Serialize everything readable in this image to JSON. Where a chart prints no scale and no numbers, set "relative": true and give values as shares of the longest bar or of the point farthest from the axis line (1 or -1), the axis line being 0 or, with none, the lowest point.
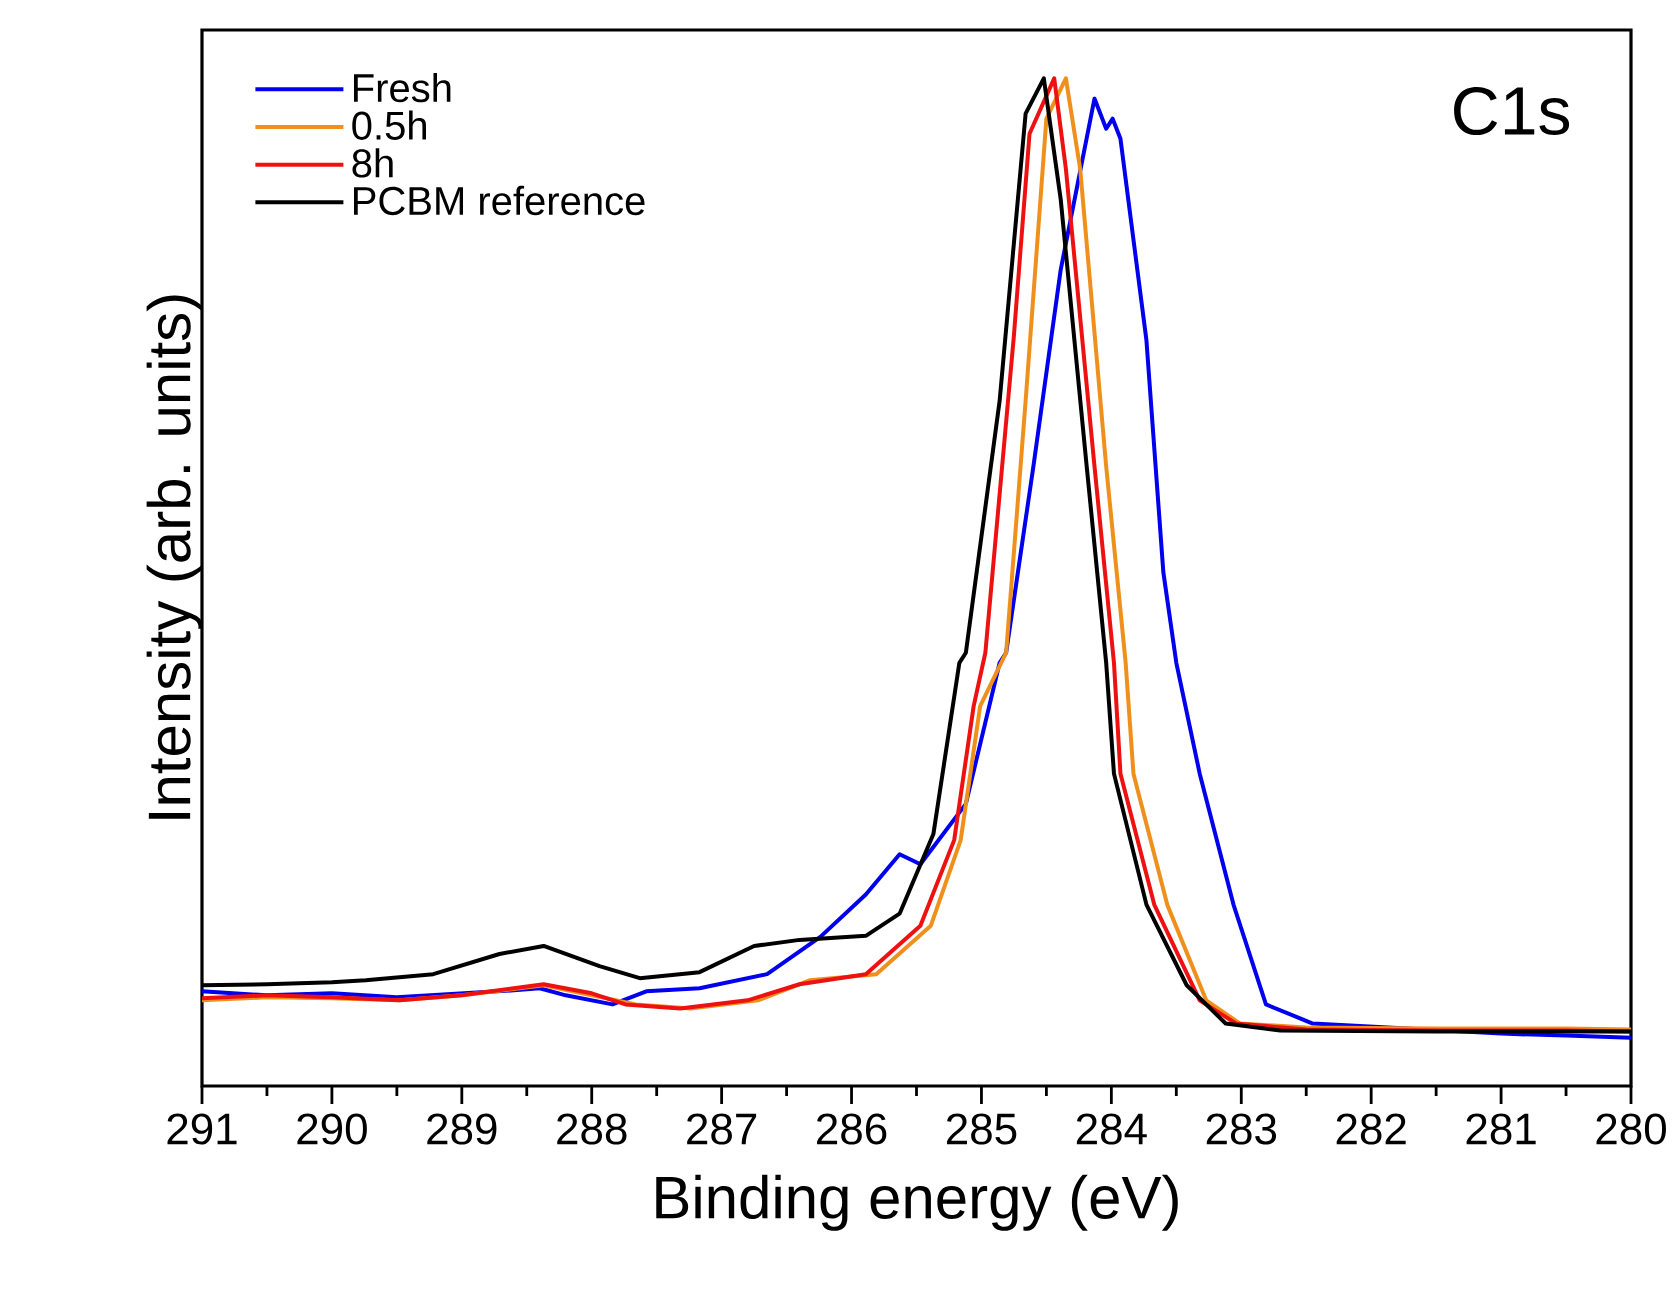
{
  "chart_data": {
    "type": "line",
    "relative": true,
    "xlabel": "Binding energy (eV)",
    "ylabel": "Intensity (arb. units)",
    "xlim": [
      291,
      280
    ],
    "xticks": [
      291,
      290,
      289,
      288,
      287,
      286,
      285,
      284,
      283,
      282,
      281,
      280
    ],
    "legend": "top left",
    "annotations": [
      "C1s"
    ],
    "series": [
      {
        "name": "Fresh",
        "color": "#0000ee",
        "x": [
          291,
          290.5,
          290,
          289.5,
          288.6,
          288.4,
          288.2,
          287.84,
          287.58,
          287.17,
          286.65,
          286.24,
          285.89,
          285.63,
          285.47,
          285.12,
          284.86,
          284.81,
          284.6,
          284.39,
          284.13,
          284.04,
          283.99,
          283.93,
          283.73,
          283.6,
          283.5,
          283.32,
          283.06,
          282.81,
          282.45,
          281,
          280.5,
          280
        ],
        "values": [
          0.094,
          0.09,
          0.092,
          0.088,
          0.095,
          0.097,
          0.09,
          0.081,
          0.094,
          0.097,
          0.111,
          0.148,
          0.19,
          0.23,
          0.22,
          0.28,
          0.42,
          0.43,
          0.615,
          0.81,
          0.98,
          0.95,
          0.96,
          0.94,
          0.74,
          0.51,
          0.42,
          0.31,
          0.18,
          0.081,
          0.062,
          0.052,
          0.05,
          0.048
        ]
      },
      {
        "name": "0.5h",
        "color": "#f0901c",
        "x": [
          291,
          290.5,
          290,
          289.48,
          289,
          288.37,
          288,
          287.66,
          287.24,
          286.72,
          286.32,
          285.81,
          285.39,
          285.16,
          285.01,
          284.81,
          284.66,
          284.5,
          284.35,
          284.24,
          284.04,
          283.89,
          283.83,
          283.57,
          283.27,
          283.01,
          282.5,
          281.5,
          280.5,
          280
        ],
        "values": [
          0.085,
          0.088,
          0.087,
          0.085,
          0.09,
          0.1,
          0.09,
          0.081,
          0.077,
          0.085,
          0.105,
          0.111,
          0.159,
          0.244,
          0.377,
          0.43,
          0.68,
          0.96,
          1.0,
          0.91,
          0.615,
          0.42,
          0.31,
          0.18,
          0.085,
          0.062,
          0.058,
          0.057,
          0.057,
          0.056
        ]
      },
      {
        "name": "8h",
        "color": "#ee1111",
        "x": [
          291,
          290.5,
          290,
          289.48,
          289,
          288.37,
          288,
          287.74,
          287.32,
          286.8,
          286.4,
          285.89,
          285.47,
          285.21,
          285.06,
          284.97,
          284.75,
          284.63,
          284.44,
          284.35,
          284.13,
          283.98,
          283.93,
          283.67,
          283.32,
          283.04,
          282.5,
          281.5,
          280.5,
          280
        ],
        "values": [
          0.087,
          0.09,
          0.088,
          0.085,
          0.09,
          0.101,
          0.092,
          0.081,
          0.077,
          0.085,
          0.101,
          0.111,
          0.159,
          0.244,
          0.377,
          0.43,
          0.745,
          0.945,
          1.0,
          0.91,
          0.615,
          0.42,
          0.31,
          0.18,
          0.085,
          0.062,
          0.056,
          0.055,
          0.055,
          0.054
        ]
      },
      {
        "name": "PCBM reference",
        "color": "#000000",
        "x": [
          291,
          290.5,
          290,
          289.74,
          289.22,
          288.71,
          288.37,
          287.94,
          287.63,
          287.17,
          286.75,
          286.4,
          285.89,
          285.63,
          285.37,
          285.17,
          285.12,
          284.86,
          284.66,
          284.52,
          284.39,
          284.19,
          284.04,
          283.98,
          283.73,
          283.42,
          283.12,
          282.7,
          281.5,
          280.5,
          280
        ],
        "values": [
          0.1,
          0.101,
          0.103,
          0.105,
          0.111,
          0.131,
          0.139,
          0.119,
          0.107,
          0.113,
          0.139,
          0.145,
          0.149,
          0.171,
          0.25,
          0.42,
          0.43,
          0.68,
          0.965,
          1.0,
          0.88,
          0.615,
          0.42,
          0.31,
          0.18,
          0.1,
          0.062,
          0.055,
          0.054,
          0.054,
          0.054
        ]
      }
    ]
  }
}
